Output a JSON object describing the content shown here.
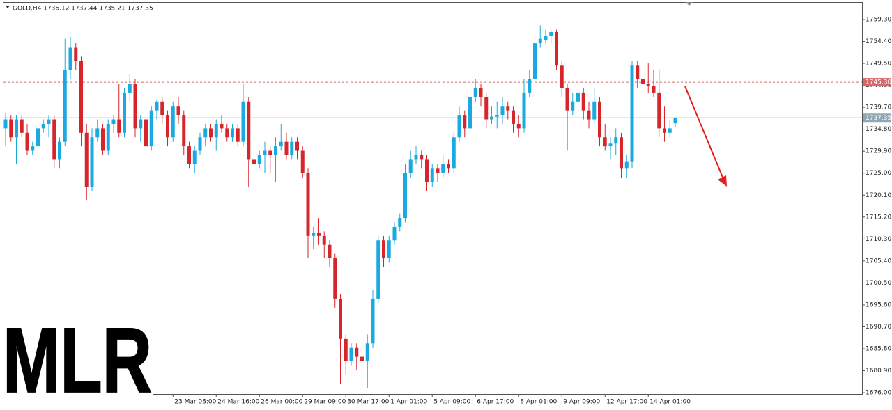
{
  "chart_data": {
    "type": "candlestick",
    "title": "GOLD,H4  1736.12 1737.44 1735.21 1737.35",
    "watermark": "MLR",
    "up_color": "#1aa9e0",
    "down_color": "#d7262b",
    "ylim": [
      1675.7,
      1763.65
    ],
    "yticks": [
      {
        "value": 1759.3,
        "label": "1759.30"
      },
      {
        "value": 1754.4,
        "label": "1754.40"
      },
      {
        "value": 1749.5,
        "label": "1749.50"
      },
      {
        "value": 1744.6,
        "label": "1744.60"
      },
      {
        "value": 1739.7,
        "label": "1739.70"
      },
      {
        "value": 1734.8,
        "label": "1734.80"
      },
      {
        "value": 1729.9,
        "label": "1729.90"
      },
      {
        "value": 1725,
        "label": "1725.00"
      },
      {
        "value": 1720.1,
        "label": "1720.10"
      },
      {
        "value": 1715.2,
        "label": "1715.20"
      },
      {
        "value": 1710.3,
        "label": "1710.30"
      },
      {
        "value": 1705.4,
        "label": "1705.40"
      },
      {
        "value": 1700.5,
        "label": "1700.50"
      },
      {
        "value": 1695.6,
        "label": "1695.60"
      },
      {
        "value": 1690.7,
        "label": "1690.70"
      },
      {
        "value": 1685.8,
        "label": "1685.80"
      },
      {
        "value": 1680.9,
        "label": "1680.90"
      },
      {
        "value": 1676,
        "label": "1676.00"
      }
    ],
    "levels": [
      {
        "value": 1745.3,
        "label": "1745.30",
        "color": "#d46a6a"
      },
      {
        "value": 1737.35,
        "label": "1737.35",
        "color": "#8fa8b4"
      }
    ],
    "categories": [
      null,
      null,
      null,
      null,
      null,
      null,
      null,
      null,
      null,
      null,
      null,
      null,
      null,
      null,
      null,
      null,
      null,
      null,
      null,
      null,
      null,
      null,
      null,
      null,
      null,
      null,
      null,
      null,
      null,
      null,
      null,
      "23 Mar 08:00",
      null,
      null,
      null,
      null,
      null,
      null,
      null,
      "24 Mar 16:00",
      null,
      null,
      null,
      null,
      null,
      null,
      null,
      "26 Mar 00:00",
      null,
      null,
      null,
      null,
      null,
      null,
      null,
      "29 Mar 09:00",
      null,
      null,
      null,
      null,
      null,
      null,
      null,
      "30 Mar 17:00",
      null,
      null,
      null,
      null,
      null,
      null,
      null,
      "1 Apr 01:00",
      null,
      null,
      null,
      null,
      null,
      null,
      null,
      "5 Apr 09:00",
      null,
      null,
      null,
      null,
      null,
      null,
      null,
      "6 Apr 17:00",
      null,
      null,
      null,
      null,
      null,
      null,
      null,
      "8 Apr 01:00",
      null,
      null,
      null,
      null,
      null,
      null,
      null,
      "9 Apr 09:00",
      null,
      null,
      null,
      null,
      null,
      null,
      null,
      "12 Apr 17:00",
      null,
      null,
      null,
      null,
      null,
      null,
      null,
      "14 Apr 01:00",
      null,
      null,
      null,
      null,
      null
    ],
    "ohlc": [
      [
        1735,
        1738.5,
        1731,
        1737
      ],
      [
        1737,
        1738,
        1732,
        1733
      ],
      [
        1733,
        1738,
        1727,
        1737
      ],
      [
        1737,
        1738,
        1733,
        1734
      ],
      [
        1734,
        1736,
        1729,
        1730
      ],
      [
        1730,
        1732,
        1729,
        1731
      ],
      [
        1731,
        1736,
        1730,
        1735
      ],
      [
        1735,
        1737,
        1734,
        1736
      ],
      [
        1736,
        1738,
        1733,
        1737
      ],
      [
        1737,
        1738,
        1726,
        1728
      ],
      [
        1728,
        1733,
        1726,
        1732
      ],
      [
        1732,
        1755,
        1731,
        1748
      ],
      [
        1748,
        1755.5,
        1746,
        1753
      ],
      [
        1753,
        1754,
        1748,
        1750
      ],
      [
        1750,
        1751,
        1731,
        1734
      ],
      [
        1734,
        1736,
        1719,
        1722
      ],
      [
        1722,
        1735,
        1721,
        1733
      ],
      [
        1733,
        1737,
        1732,
        1735
      ],
      [
        1735,
        1736,
        1729,
        1730
      ],
      [
        1730,
        1737,
        1729,
        1736
      ],
      [
        1736,
        1738,
        1734,
        1737
      ],
      [
        1737,
        1745,
        1733,
        1734
      ],
      [
        1734,
        1744,
        1733,
        1743
      ],
      [
        1743,
        1747,
        1741,
        1745
      ],
      [
        1745,
        1746,
        1733,
        1735
      ],
      [
        1735,
        1738,
        1732,
        1737
      ],
      [
        1737,
        1738,
        1729,
        1731
      ],
      [
        1731,
        1740,
        1730,
        1739
      ],
      [
        1739,
        1741.5,
        1737,
        1741
      ],
      [
        1741,
        1742,
        1736,
        1738
      ],
      [
        1738,
        1739,
        1731,
        1733
      ],
      [
        1733,
        1741,
        1732,
        1740
      ],
      [
        1740,
        1742,
        1736,
        1738
      ],
      [
        1738,
        1739,
        1729,
        1731
      ],
      [
        1731,
        1732,
        1726,
        1727
      ],
      [
        1727,
        1731,
        1725,
        1730
      ],
      [
        1730,
        1734,
        1729,
        1733
      ],
      [
        1733,
        1736,
        1731,
        1735
      ],
      [
        1735,
        1736,
        1732,
        1733
      ],
      [
        1733,
        1737,
        1730,
        1736
      ],
      [
        1736,
        1738,
        1734,
        1735
      ],
      [
        1735,
        1736,
        1732,
        1733
      ],
      [
        1733,
        1736,
        1732,
        1735
      ],
      [
        1735,
        1736,
        1731,
        1732
      ],
      [
        1732,
        1745,
        1731,
        1741
      ],
      [
        1741,
        1742,
        1722,
        1728
      ],
      [
        1728,
        1731,
        1726,
        1727
      ],
      [
        1727,
        1730,
        1726,
        1729
      ],
      [
        1729,
        1732,
        1725,
        1730
      ],
      [
        1730,
        1731,
        1725,
        1729
      ],
      [
        1729,
        1733,
        1723,
        1731
      ],
      [
        1731,
        1736,
        1730,
        1732
      ],
      [
        1732,
        1734,
        1728,
        1729
      ],
      [
        1729,
        1733,
        1728,
        1732
      ],
      [
        1732,
        1733,
        1728,
        1730
      ],
      [
        1730,
        1731,
        1724,
        1725
      ],
      [
        1725,
        1726,
        1706,
        1711
      ],
      [
        1711,
        1713,
        1708,
        1711.6
      ],
      [
        1711.6,
        1715,
        1709,
        1711
      ],
      [
        1711,
        1712,
        1706,
        1709
      ],
      [
        1709,
        1710,
        1704,
        1706
      ],
      [
        1706,
        1707,
        1695,
        1697
      ],
      [
        1697,
        1698,
        1678,
        1688
      ],
      [
        1688,
        1689,
        1680,
        1683
      ],
      [
        1683,
        1687,
        1682,
        1686
      ],
      [
        1686,
        1687,
        1681,
        1684
      ],
      [
        1684,
        1688,
        1678,
        1683
      ],
      [
        1683,
        1689,
        1677,
        1687
      ],
      [
        1687,
        1699,
        1686,
        1697
      ],
      [
        1697,
        1711,
        1696,
        1710
      ],
      [
        1710,
        1711,
        1704,
        1706
      ],
      [
        1706,
        1711,
        1705,
        1710
      ],
      [
        1710,
        1714,
        1709,
        1713
      ],
      [
        1713,
        1716,
        1712,
        1715
      ],
      [
        1715,
        1727,
        1714,
        1725
      ],
      [
        1725,
        1730,
        1724,
        1728
      ],
      [
        1728,
        1731,
        1727,
        1729
      ],
      [
        1729,
        1730,
        1726,
        1728
      ],
      [
        1728,
        1729,
        1721,
        1723
      ],
      [
        1723,
        1727,
        1722,
        1726
      ],
      [
        1726,
        1727,
        1723,
        1725
      ],
      [
        1725,
        1729,
        1724,
        1727
      ],
      [
        1727,
        1728,
        1725,
        1726
      ],
      [
        1726,
        1734,
        1725,
        1733
      ],
      [
        1733,
        1740,
        1732,
        1738
      ],
      [
        1738,
        1739,
        1733,
        1735
      ],
      [
        1735,
        1744,
        1734,
        1742
      ],
      [
        1742,
        1746,
        1741,
        1744
      ],
      [
        1744,
        1745,
        1740,
        1742
      ],
      [
        1742,
        1743,
        1735,
        1737
      ],
      [
        1737,
        1740,
        1736,
        1737.6
      ],
      [
        1737.6,
        1741,
        1735,
        1738
      ],
      [
        1738,
        1742,
        1736,
        1740
      ],
      [
        1740,
        1741,
        1737,
        1739
      ],
      [
        1739,
        1740,
        1734,
        1736
      ],
      [
        1736,
        1738,
        1733,
        1735
      ],
      [
        1735,
        1746,
        1734,
        1743
      ],
      [
        1743,
        1748,
        1742,
        1746
      ],
      [
        1746,
        1755,
        1745,
        1754
      ],
      [
        1754,
        1758,
        1753,
        1755
      ],
      [
        1754.8,
        1757,
        1754,
        1755.6
      ],
      [
        1755.6,
        1757,
        1754,
        1756.5
      ],
      [
        1756.5,
        1757,
        1748,
        1749
      ],
      [
        1749,
        1750,
        1742,
        1744
      ],
      [
        1744,
        1745,
        1730,
        1739
      ],
      [
        1739,
        1743,
        1738,
        1741
      ],
      [
        1741,
        1745,
        1740,
        1743
      ],
      [
        1743,
        1744,
        1737,
        1739
      ],
      [
        1739,
        1741,
        1735,
        1737
      ],
      [
        1737,
        1744,
        1736,
        1741
      ],
      [
        1741,
        1742,
        1731,
        1733
      ],
      [
        1733,
        1736,
        1730,
        1731
      ],
      [
        1731,
        1733,
        1728,
        1731.6
      ],
      [
        1731.6,
        1735,
        1729,
        1733
      ],
      [
        1733,
        1734,
        1724,
        1726
      ],
      [
        1726,
        1729,
        1724,
        1727.5
      ],
      [
        1727.5,
        1750,
        1726,
        1749
      ],
      [
        1749,
        1750,
        1744,
        1746
      ],
      [
        1746,
        1747,
        1743,
        1745
      ],
      [
        1745,
        1749.5,
        1743,
        1744.5
      ],
      [
        1744.5,
        1748,
        1742,
        1743
      ],
      [
        1743,
        1748,
        1733,
        1735
      ],
      [
        1735,
        1740,
        1732,
        1734
      ],
      [
        1734,
        1737,
        1733,
        1735
      ],
      [
        1736.12,
        1737.44,
        1735.21,
        1737.35
      ]
    ]
  }
}
